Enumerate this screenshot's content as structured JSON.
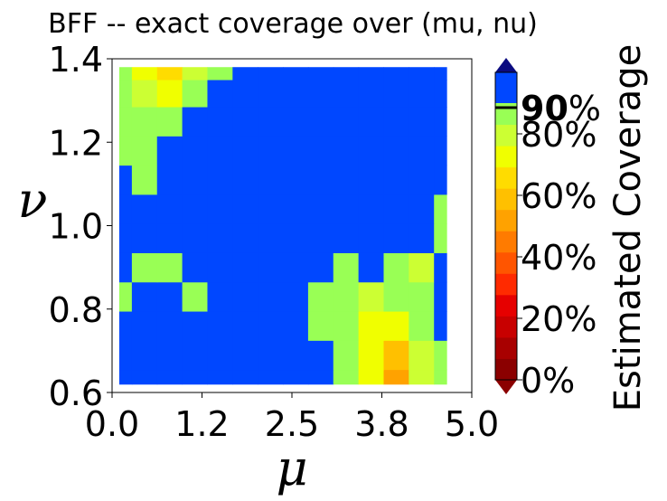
{
  "chart_data": {
    "type": "heatmap",
    "title": "BFF -- exact coverage over (mu, nu)",
    "xlabel": "μ",
    "ylabel": "ν",
    "xlim": [
      0.0,
      5.0
    ],
    "ylim": [
      0.6,
      1.4
    ],
    "xticks": [
      "0.0",
      "1.2",
      "2.5",
      "3.8",
      "5.0"
    ],
    "yticks": [
      "0.6",
      "0.8",
      "1.0",
      "1.2",
      "1.4"
    ],
    "colorbar": {
      "label": "Estimated Coverage",
      "ticks": [
        "0%",
        "20%",
        "40%",
        "60%",
        "80%"
      ],
      "highlight_tick": "90%",
      "range": [
        0,
        1
      ],
      "level_colors": [
        "#8b0000",
        "#a80000",
        "#c80000",
        "#e60000",
        "#ff2a00",
        "#ff5500",
        "#ff7b00",
        "#ffa200",
        "#ffc000",
        "#ffdc00",
        "#f0ff00",
        "#ccff33",
        "#99ff55"
      ],
      "over_color": "#0047ff",
      "extend_low_color": "#8b0000",
      "extend_high_color": "#0b0b80"
    },
    "x": [
      0.1,
      0.45,
      0.8,
      1.15,
      1.5,
      1.85,
      2.2,
      2.55,
      2.9,
      3.25,
      3.6,
      3.95,
      4.3,
      4.65
    ],
    "y": [
      0.62,
      0.69,
      0.76,
      0.83,
      0.9,
      0.97,
      1.04,
      1.11,
      1.18,
      1.25,
      1.32,
      1.38
    ],
    "z": [
      [
        0.95,
        0.95,
        0.95,
        0.9,
        0.93,
        0.95,
        0.9,
        0.9,
        0.9,
        0.88,
        0.75,
        0.55,
        0.8,
        0.88
      ],
      [
        0.95,
        0.95,
        0.95,
        0.93,
        0.95,
        0.95,
        0.92,
        0.9,
        0.9,
        0.88,
        0.72,
        0.6,
        0.82,
        0.88
      ],
      [
        0.95,
        0.95,
        0.92,
        0.9,
        0.95,
        0.95,
        0.92,
        0.9,
        0.88,
        0.85,
        0.7,
        0.75,
        0.85,
        0.9
      ],
      [
        0.88,
        0.92,
        0.9,
        0.88,
        0.95,
        0.95,
        0.9,
        0.9,
        0.88,
        0.87,
        0.8,
        0.85,
        0.85,
        0.9
      ],
      [
        0.9,
        0.88,
        0.88,
        0.9,
        0.93,
        0.93,
        0.9,
        0.92,
        0.9,
        0.88,
        0.9,
        0.88,
        0.82,
        0.9
      ],
      [
        0.93,
        0.9,
        0.93,
        0.9,
        0.92,
        0.95,
        0.93,
        0.9,
        0.9,
        0.9,
        0.9,
        0.9,
        0.9,
        0.88
      ],
      [
        0.95,
        0.9,
        0.95,
        0.9,
        0.93,
        0.95,
        0.9,
        0.9,
        0.9,
        0.92,
        0.93,
        0.9,
        0.9,
        0.88
      ],
      [
        0.92,
        0.88,
        0.9,
        0.9,
        0.93,
        0.92,
        0.9,
        0.9,
        0.9,
        0.95,
        0.95,
        0.93,
        0.9,
        0.9
      ],
      [
        0.88,
        0.88,
        0.9,
        0.9,
        0.9,
        0.93,
        0.9,
        0.92,
        0.9,
        0.95,
        0.95,
        0.93,
        0.9,
        0.9
      ],
      [
        0.85,
        0.88,
        0.88,
        0.9,
        0.9,
        0.9,
        0.9,
        0.93,
        0.9,
        0.92,
        0.9,
        0.9,
        0.9,
        0.93
      ],
      [
        0.88,
        0.8,
        0.75,
        0.85,
        0.9,
        0.9,
        0.9,
        0.9,
        0.9,
        0.9,
        0.9,
        0.9,
        0.9,
        0.95
      ],
      [
        0.87,
        0.72,
        0.68,
        0.8,
        0.88,
        0.9,
        0.9,
        0.9,
        0.9,
        0.9,
        0.9,
        0.9,
        0.92,
        0.95
      ]
    ]
  }
}
